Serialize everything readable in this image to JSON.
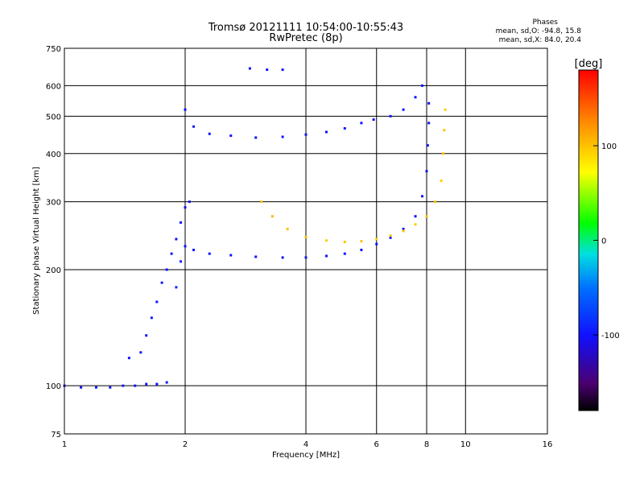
{
  "header": {
    "title_line1": "Tromsø 20121111 10:54:00-10:55:43",
    "title_line2": "RwPretec (8p)",
    "stats_title": "Phases",
    "stats_O": "mean, sd,O: -94.8, 15.8",
    "stats_X": "mean, sd,X:  84.0, 20.4"
  },
  "colorbar": {
    "unit_label": "[deg]",
    "tick_labels": [
      "100",
      "0",
      "-100"
    ],
    "tick_values": [
      100,
      0,
      -100
    ],
    "range": [
      -180,
      180
    ]
  },
  "chart_data": {
    "type": "scatter",
    "xlabel": "Frequency [MHz]",
    "ylabel": "Stationary phase Virtual Height [km]",
    "x_scale": "log",
    "y_scale": "log",
    "xlim": [
      1,
      16
    ],
    "ylim": [
      75,
      750
    ],
    "x_ticks": [
      1,
      2,
      4,
      6,
      8,
      10,
      16
    ],
    "x_tick_labels": [
      "1",
      "2",
      "4",
      "6",
      "8",
      "10",
      "16"
    ],
    "y_ticks": [
      75,
      100,
      200,
      300,
      400,
      500,
      600,
      750
    ],
    "y_tick_labels": [
      "75",
      "100",
      "200",
      "300",
      "400",
      "500",
      "600",
      "750"
    ],
    "grid": true,
    "color_meaning": "phase [deg]",
    "series": [
      {
        "kind": "E/F1 O-mode low trace",
        "points": [
          [
            1.0,
            100,
            -100
          ],
          [
            1.1,
            99,
            -100
          ],
          [
            1.2,
            99,
            -95
          ],
          [
            1.3,
            99,
            -100
          ],
          [
            1.4,
            100,
            -95
          ],
          [
            1.5,
            100,
            -100
          ],
          [
            1.6,
            101,
            -95
          ],
          [
            1.7,
            101,
            -100
          ],
          [
            1.8,
            102,
            -95
          ],
          [
            1.45,
            118,
            -100
          ],
          [
            1.55,
            122,
            -95
          ],
          [
            1.6,
            135,
            -100
          ],
          [
            1.65,
            150,
            -95
          ],
          [
            1.7,
            165,
            -100
          ],
          [
            1.75,
            185,
            -95
          ],
          [
            1.8,
            200,
            -100
          ],
          [
            1.85,
            220,
            -95
          ],
          [
            1.9,
            240,
            -100
          ],
          [
            1.95,
            265,
            -95
          ],
          [
            2.0,
            290,
            -100
          ],
          [
            2.05,
            300,
            -105
          ],
          [
            1.9,
            180,
            -90
          ],
          [
            1.95,
            210,
            -95
          ],
          [
            2.0,
            230,
            -100
          ]
        ]
      },
      {
        "kind": "F2 O-mode trace",
        "points": [
          [
            2.1,
            225,
            -100
          ],
          [
            2.3,
            220,
            -100
          ],
          [
            2.6,
            218,
            -100
          ],
          [
            3.0,
            216,
            -100
          ],
          [
            3.5,
            215,
            -100
          ],
          [
            4.0,
            215,
            -100
          ],
          [
            4.5,
            217,
            -100
          ],
          [
            5.0,
            220,
            -100
          ],
          [
            5.5,
            225,
            -100
          ],
          [
            6.0,
            233,
            -100
          ],
          [
            6.5,
            242,
            -100
          ],
          [
            7.0,
            255,
            -100
          ],
          [
            7.5,
            275,
            -100
          ],
          [
            7.8,
            310,
            -100
          ],
          [
            8.0,
            360,
            -100
          ],
          [
            8.05,
            420,
            -100
          ],
          [
            8.1,
            480,
            -100
          ],
          [
            8.1,
            540,
            -100
          ]
        ]
      },
      {
        "kind": "F2 X-mode trace",
        "points": [
          [
            3.1,
            300,
            100
          ],
          [
            3.3,
            275,
            105
          ],
          [
            3.6,
            255,
            100
          ],
          [
            4.0,
            243,
            100
          ],
          [
            4.5,
            238,
            95
          ],
          [
            5.0,
            236,
            100
          ],
          [
            5.5,
            237,
            100
          ],
          [
            6.0,
            240,
            95
          ],
          [
            6.5,
            245,
            100
          ],
          [
            7.0,
            252,
            100
          ],
          [
            7.5,
            262,
            95
          ],
          [
            8.0,
            275,
            100
          ],
          [
            8.4,
            300,
            100
          ],
          [
            8.7,
            340,
            95
          ],
          [
            8.8,
            400,
            100
          ],
          [
            8.85,
            460,
            100
          ],
          [
            8.9,
            520,
            95
          ]
        ]
      },
      {
        "kind": "Multiple-hop trace",
        "points": [
          [
            2.0,
            520,
            -100
          ],
          [
            2.1,
            470,
            -95
          ],
          [
            2.3,
            450,
            -100
          ],
          [
            2.6,
            445,
            -100
          ],
          [
            3.0,
            440,
            -100
          ],
          [
            3.5,
            442,
            -100
          ],
          [
            4.0,
            448,
            -100
          ],
          [
            4.5,
            455,
            -100
          ],
          [
            5.0,
            465,
            -100
          ],
          [
            5.5,
            480,
            -100
          ],
          [
            5.9,
            490,
            -100
          ],
          [
            6.5,
            500,
            -100
          ],
          [
            7.0,
            520,
            -100
          ],
          [
            7.5,
            560,
            -100
          ],
          [
            7.8,
            600,
            -95
          ],
          [
            2.9,
            665,
            -100
          ],
          [
            3.2,
            660,
            -100
          ],
          [
            3.5,
            660,
            -100
          ]
        ]
      }
    ]
  }
}
